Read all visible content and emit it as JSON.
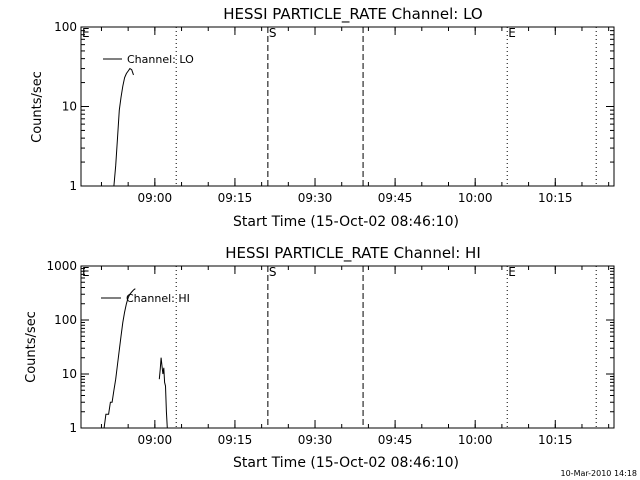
{
  "footer_stamp": "10-Mar-2010 14:18",
  "chart_data": [
    {
      "type": "line",
      "title": "HESSI PARTICLE_RATE Channel: LO",
      "xlabel": "Start Time (15-Oct-02 08:46:10)",
      "ylabel": "Counts/sec",
      "yscale": "log",
      "ylim": [
        1,
        100
      ],
      "yticks": [
        {
          "value": 1,
          "label": "1"
        },
        {
          "value": 10,
          "label": "10"
        },
        {
          "value": 100,
          "label": "100"
        }
      ],
      "xlim": [
        "08:46:10",
        "10:26:00"
      ],
      "xticks": [
        "09:00",
        "09:15",
        "09:30",
        "09:45",
        "10:00",
        "10:15"
      ],
      "grid": false,
      "legend": {
        "position": "top-left",
        "entries": [
          "Channel: LO"
        ]
      },
      "markers": [
        {
          "time": "08:46:10",
          "style": "dotted",
          "label": "E"
        },
        {
          "time": "09:04:00",
          "style": "dotted",
          "label": ""
        },
        {
          "time": "09:21:10",
          "style": "dashed",
          "label": "S"
        },
        {
          "time": "09:39:00",
          "style": "dashed",
          "label": ""
        },
        {
          "time": "10:06:00",
          "style": "dotted",
          "label": "E"
        },
        {
          "time": "10:22:40",
          "style": "dotted",
          "label": ""
        }
      ],
      "series": [
        {
          "name": "Channel: LO",
          "x": [
            "08:52:20",
            "08:52:40",
            "08:53:00",
            "08:53:20",
            "08:53:40",
            "08:54:00",
            "08:54:20",
            "08:54:40",
            "08:55:00",
            "08:55:20",
            "08:55:40",
            "08:56:00"
          ],
          "y": [
            1,
            1.8,
            4,
            9,
            13,
            18,
            23,
            26,
            28,
            30,
            29,
            25
          ]
        }
      ]
    },
    {
      "type": "line",
      "title": "HESSI PARTICLE_RATE Channel: HI",
      "xlabel": "Start Time (15-Oct-02 08:46:10)",
      "ylabel": "Counts/sec",
      "yscale": "log",
      "ylim": [
        1,
        1000
      ],
      "yticks": [
        {
          "value": 1,
          "label": "1"
        },
        {
          "value": 10,
          "label": "10"
        },
        {
          "value": 100,
          "label": "100"
        },
        {
          "value": 1000,
          "label": "1000"
        }
      ],
      "xlim": [
        "08:46:10",
        "10:26:00"
      ],
      "xticks": [
        "09:00",
        "09:15",
        "09:30",
        "09:45",
        "10:00",
        "10:15"
      ],
      "grid": false,
      "legend": {
        "position": "top-left",
        "entries": [
          "Channel: HI"
        ]
      },
      "markers": [
        {
          "time": "08:46:10",
          "style": "dotted",
          "label": "E"
        },
        {
          "time": "09:04:00",
          "style": "dotted",
          "label": ""
        },
        {
          "time": "09:21:10",
          "style": "dashed",
          "label": "S"
        },
        {
          "time": "09:39:00",
          "style": "dashed",
          "label": ""
        },
        {
          "time": "10:06:00",
          "style": "dotted",
          "label": "E"
        },
        {
          "time": "10:22:40",
          "style": "dotted",
          "label": ""
        }
      ],
      "series": [
        {
          "name": "Channel: HI",
          "x": [
            "08:50:30",
            "08:50:50",
            "08:51:00",
            "08:51:20",
            "08:51:40",
            "08:52:00",
            "08:52:20",
            "08:52:40",
            "08:53:00",
            "08:53:20",
            "08:53:40",
            "08:54:00",
            "08:54:20",
            "08:54:40",
            "08:55:00",
            "08:55:20",
            "08:55:40",
            "08:56:00",
            "08:56:20"
          ],
          "y": [
            1,
            1.8,
            1.8,
            1.8,
            3,
            3,
            5,
            8,
            15,
            28,
            50,
            90,
            140,
            200,
            260,
            300,
            330,
            360,
            380
          ]
        },
        {
          "name": "",
          "x": [
            "09:00:50",
            "09:01:00",
            "09:01:10",
            "09:01:20",
            "09:01:30",
            "09:01:40",
            "09:01:50",
            "09:02:00",
            "09:02:10",
            "09:02:20"
          ],
          "y": [
            8,
            12,
            20,
            14,
            10,
            13,
            7,
            6,
            2,
            1
          ]
        }
      ]
    }
  ]
}
